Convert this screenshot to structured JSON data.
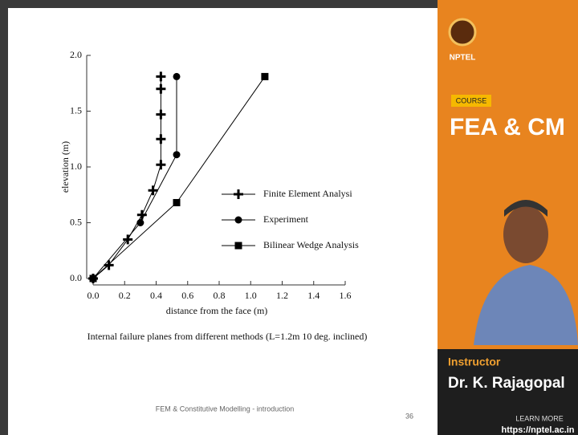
{
  "chart_data": {
    "type": "line",
    "x_label": "distance from the face (m)",
    "y_label": "elevation (m)",
    "caption": "Internal failure planes from different methods (L=1.2m 10 deg. inclined)",
    "xlim": [
      0,
      1.6
    ],
    "ylim": [
      0,
      2.0
    ],
    "xticks": [
      {
        "value": 0,
        "label": "0.0"
      },
      0.2,
      0.4,
      0.6,
      0.8,
      {
        "value": 1,
        "label": "1.0"
      },
      1.2,
      1.4,
      1.6
    ],
    "yticks": [
      {
        "value": 0,
        "label": "0.0"
      },
      0.5,
      {
        "value": 1,
        "label": "1.0"
      },
      1.5,
      {
        "value": 2,
        "label": "2.0"
      }
    ],
    "series": [
      {
        "name": "Finite Element Analysi",
        "color": "#000000",
        "marker": "plus",
        "x": [
          0,
          0.1,
          0.22,
          0.31,
          0.38,
          0.43,
          0.43,
          0.43,
          0.43,
          0.43
        ],
        "values": [
          0,
          0.12,
          0.35,
          0.57,
          0.79,
          1.02,
          1.25,
          1.47,
          1.7,
          1.81
        ]
      },
      {
        "name": "Experiment",
        "color": "#000000",
        "marker": "circle",
        "x": [
          0,
          0.3,
          0.53,
          0.53
        ],
        "values": [
          0,
          0.5,
          1.11,
          1.81
        ]
      },
      {
        "name": "Bilinear Wedge Analysis",
        "color": "#000000",
        "marker": "square",
        "x": [
          0,
          0.53,
          1.09
        ],
        "values": [
          0,
          0.68,
          1.81
        ]
      }
    ]
  },
  "slide": {
    "footer": "FEM & Constitutive Modelling - introduction",
    "page": "36"
  },
  "sidebar": {
    "logo": "NPTEL",
    "badge": "COURSE",
    "course": "FEA & CM",
    "role": "Instructor",
    "instructor": "Dr. K. Rajagopal",
    "cta": "LEARN MORE",
    "url": "https://nptel.ac.in"
  }
}
